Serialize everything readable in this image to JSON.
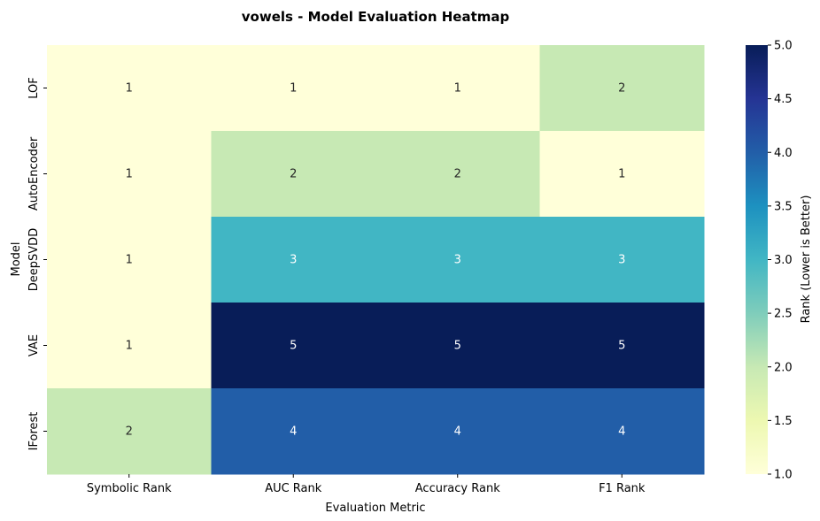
{
  "chart_data": {
    "type": "heatmap",
    "title": "vowels - Model Evaluation Heatmap",
    "xlabel": "Evaluation Metric",
    "ylabel": "Model",
    "columns": [
      "Symbolic Rank",
      "AUC Rank",
      "Accuracy Rank",
      "F1 Rank"
    ],
    "rows": [
      "LOF",
      "AutoEncoder",
      "DeepSVDD",
      "VAE",
      "IForest"
    ],
    "values": [
      [
        1,
        1,
        1,
        2
      ],
      [
        1,
        2,
        2,
        1
      ],
      [
        1,
        3,
        3,
        3
      ],
      [
        1,
        5,
        5,
        5
      ],
      [
        2,
        4,
        4,
        4
      ]
    ],
    "colormap": "YlGnBu",
    "colorbar": {
      "label": "Rank (Lower is Better)",
      "range": [
        1.0,
        5.0
      ],
      "ticks": [
        "1.0",
        "1.5",
        "2.0",
        "2.5",
        "3.0",
        "3.5",
        "4.0",
        "4.5",
        "5.0"
      ]
    },
    "cell_colors": {
      "1": "#ffffd9",
      "2": "#c7e9b4",
      "3": "#41b6c4",
      "4": "#225ea8",
      "5": "#081d58"
    }
  }
}
